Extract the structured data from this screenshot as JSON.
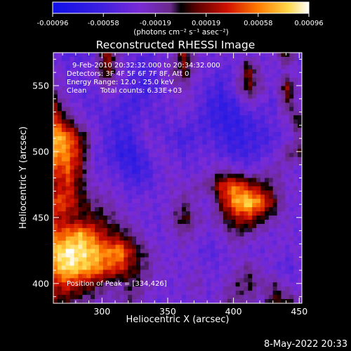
{
  "chart_data": {
    "type": "heatmap",
    "title": "Reconstructed RHESSI Image",
    "xlabel": "Heliocentric X (arcsec)",
    "ylabel": "Heliocentric Y (arcsec)",
    "xlim": [
      263,
      452
    ],
    "ylim": [
      385,
      575
    ],
    "xticks": [
      300,
      350,
      400,
      450
    ],
    "yticks": [
      400,
      450,
      500,
      550
    ],
    "colorbar": {
      "colormap": "rhessi-rainbow-hot",
      "range": [
        -0.00096,
        0.00096
      ],
      "ticks": [
        "-0.00096",
        "-0.00058",
        "-0.00019",
        "0.00019",
        "0.00058",
        "0.00096"
      ],
      "tick_values": [
        -0.00096,
        -0.00058,
        -0.00019,
        0.00019,
        0.00058,
        0.00096
      ],
      "unit_label": "(photons cm⁻² s⁻¹ asec⁻²)"
    },
    "annotations": {
      "time_range": "9-Feb-2010 20:32:32.000 to 20:34:32.000",
      "detectors": "Detectors: 3F 4F 5F 6F 7F 8F, Att 0",
      "energy_range": "Energy Range: 12.0 - 25.0 keV",
      "algorithm": "Clean",
      "total_counts": "Total counts: 6.33E+03",
      "peak": "Position of Peak = [334,426]"
    },
    "peak_position": [
      334,
      426
    ],
    "image_values": {
      "description_note": "",
      "rows_top_to_bottom_normalized": [
        [
          0.3,
          0.25,
          0.25,
          0.3,
          0.65,
          0.35,
          0.3,
          0.25,
          0.3,
          0.35,
          0.6,
          0.35,
          0.3,
          0.35,
          0.3,
          0.35,
          0.3,
          0.35,
          0.55,
          0.3
        ],
        [
          0.35,
          0.3,
          0.3,
          0.35,
          0.6,
          0.35,
          0.25,
          0.2,
          0.3,
          0.4,
          0.55,
          0.35,
          0.3,
          0.25,
          0.3,
          0.6,
          0.35,
          0.3,
          0.35,
          0.3
        ],
        [
          0.4,
          0.3,
          0.25,
          0.3,
          0.4,
          0.3,
          0.25,
          0.2,
          0.25,
          0.35,
          0.4,
          0.3,
          0.25,
          0.2,
          0.35,
          0.55,
          0.4,
          0.3,
          0.6,
          0.35
        ],
        [
          0.55,
          0.35,
          0.3,
          0.25,
          0.3,
          0.25,
          0.2,
          0.25,
          0.3,
          0.3,
          0.35,
          0.3,
          0.2,
          0.15,
          0.2,
          0.35,
          0.3,
          0.25,
          0.5,
          0.35
        ],
        [
          0.7,
          0.5,
          0.35,
          0.3,
          0.25,
          0.2,
          0.25,
          0.3,
          0.25,
          0.3,
          0.3,
          0.25,
          0.2,
          0.15,
          0.15,
          0.2,
          0.25,
          0.3,
          0.35,
          0.55
        ],
        [
          0.9,
          0.8,
          0.55,
          0.35,
          0.25,
          0.2,
          0.2,
          0.35,
          0.3,
          0.25,
          0.2,
          0.25,
          0.25,
          0.2,
          0.15,
          0.2,
          0.2,
          0.25,
          0.3,
          0.4
        ],
        [
          0.85,
          0.8,
          0.6,
          0.3,
          0.25,
          0.15,
          0.15,
          0.25,
          0.35,
          0.3,
          0.25,
          0.3,
          0.3,
          0.25,
          0.2,
          0.2,
          0.25,
          0.3,
          0.45,
          0.5
        ],
        [
          0.7,
          0.75,
          0.55,
          0.3,
          0.3,
          0.25,
          0.15,
          0.2,
          0.3,
          0.35,
          0.3,
          0.3,
          0.35,
          0.4,
          0.35,
          0.3,
          0.35,
          0.4,
          0.35,
          0.3
        ],
        [
          0.6,
          0.7,
          0.5,
          0.35,
          0.35,
          0.3,
          0.25,
          0.25,
          0.3,
          0.35,
          0.35,
          0.4,
          0.45,
          0.7,
          0.8,
          0.65,
          0.55,
          0.45,
          0.35,
          0.35
        ],
        [
          0.75,
          0.7,
          0.55,
          0.45,
          0.4,
          0.35,
          0.3,
          0.35,
          0.3,
          0.35,
          0.45,
          0.35,
          0.3,
          0.6,
          0.85,
          0.95,
          0.8,
          0.55,
          0.35,
          0.3
        ],
        [
          0.65,
          0.6,
          0.55,
          0.55,
          0.5,
          0.4,
          0.35,
          0.3,
          0.3,
          0.4,
          0.55,
          0.4,
          0.35,
          0.45,
          0.6,
          0.65,
          0.5,
          0.4,
          0.35,
          0.3
        ],
        [
          0.75,
          0.8,
          0.9,
          0.75,
          0.6,
          0.55,
          0.45,
          0.35,
          0.3,
          0.35,
          0.4,
          0.35,
          0.3,
          0.35,
          0.45,
          0.4,
          0.35,
          0.3,
          0.35,
          0.3
        ],
        [
          0.9,
          1.0,
          0.95,
          0.9,
          0.8,
          0.85,
          0.6,
          0.45,
          0.35,
          0.3,
          0.35,
          0.3,
          0.25,
          0.3,
          0.35,
          0.3,
          0.3,
          0.35,
          0.3,
          0.35
        ],
        [
          0.85,
          0.95,
          0.9,
          0.85,
          0.75,
          0.7,
          0.55,
          0.45,
          0.35,
          0.35,
          0.3,
          0.35,
          0.3,
          0.3,
          0.35,
          0.45,
          0.35,
          0.3,
          0.25,
          0.3
        ],
        [
          0.65,
          0.7,
          0.6,
          0.55,
          0.45,
          0.4,
          0.5,
          0.4,
          0.35,
          0.3,
          0.35,
          0.4,
          0.3,
          0.35,
          0.45,
          0.5,
          0.4,
          0.45,
          0.35,
          0.3
        ],
        [
          0.55,
          0.5,
          0.45,
          0.4,
          0.35,
          0.4,
          0.45,
          0.35,
          0.3,
          0.35,
          0.3,
          0.35,
          0.3,
          0.4,
          0.45,
          0.4,
          0.35,
          0.55,
          0.5,
          0.4
        ]
      ]
    }
  },
  "footer": {
    "timestamp": "8-May-2022 20:33"
  }
}
